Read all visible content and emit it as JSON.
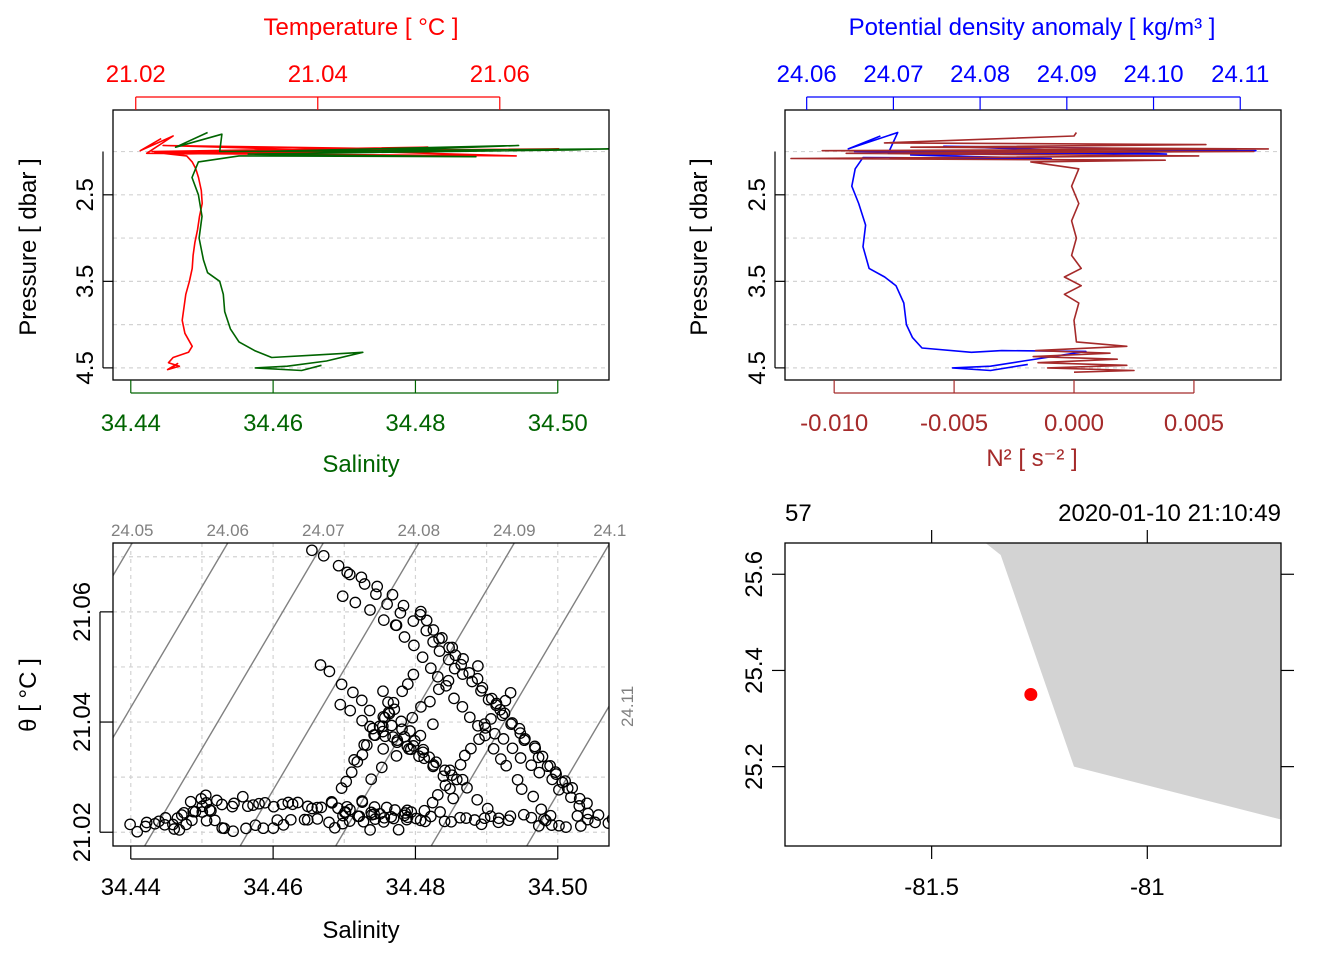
{
  "colors": {
    "temperature": "#ff0000",
    "salinity": "#006400",
    "density": "#0000ff",
    "n2": "#a52a2a",
    "grid": "#d3d3d3",
    "isopycnal": "#808080",
    "land": "#d3d3d3",
    "station": "#ff0000",
    "axis": "#000000"
  },
  "chart_data": [
    {
      "id": "ts_profile",
      "type": "line",
      "top_axis_label": "Temperature [ °C ]",
      "top_axis_ticks": [
        "21.02",
        "21.04",
        "21.06"
      ],
      "top_axis_range": [
        21.0175,
        21.072
      ],
      "bottom_axis_label": "Salinity",
      "bottom_axis_ticks": [
        "34.44",
        "34.46",
        "34.48",
        "34.50"
      ],
      "bottom_axis_range": [
        34.4375,
        34.5072
      ],
      "ylabel": "Pressure [ dbar ]",
      "y_ticks": [
        "2.5",
        "3.5",
        "4.5"
      ],
      "y_range": [
        1.52,
        4.64
      ],
      "y_reversed": true,
      "series": [
        {
          "name": "Temperature",
          "axis": "top",
          "points": [
            [
              21.0228,
              1.85
            ],
            [
              21.0205,
              1.99
            ],
            [
              21.0241,
              1.82
            ],
            [
              21.0212,
              2.02
            ],
            [
              21.0618,
              2.05
            ],
            [
              21.023,
              1.93
            ],
            [
              21.0555,
              1.98
            ],
            [
              21.0218,
              2.0
            ],
            [
              21.0521,
              1.95
            ],
            [
              21.0237,
              2.03
            ],
            [
              21.0665,
              1.97
            ],
            [
              21.0221,
              2.01
            ],
            [
              21.0256,
              2.05
            ],
            [
              21.0262,
              2.12
            ],
            [
              21.0266,
              2.2
            ],
            [
              21.0269,
              2.3
            ],
            [
              21.0272,
              2.45
            ],
            [
              21.0273,
              2.6
            ],
            [
              21.027,
              2.75
            ],
            [
              21.0268,
              2.9
            ],
            [
              21.0265,
              3.05
            ],
            [
              21.0263,
              3.2
            ],
            [
              21.0262,
              3.35
            ],
            [
              21.0259,
              3.5
            ],
            [
              21.0255,
              3.65
            ],
            [
              21.0253,
              3.8
            ],
            [
              21.0251,
              3.95
            ],
            [
              21.0254,
              4.1
            ],
            [
              21.0262,
              4.25
            ],
            [
              21.0258,
              4.32
            ],
            [
              21.0241,
              4.38
            ],
            [
              21.0236,
              4.44
            ],
            [
              21.0248,
              4.48
            ],
            [
              21.0235,
              4.52
            ],
            [
              21.0246,
              4.45
            ],
            [
              21.0239,
              4.5
            ]
          ]
        },
        {
          "name": "Salinity",
          "axis": "bottom",
          "points": [
            [
              34.4508,
              1.78
            ],
            [
              34.4463,
              1.95
            ],
            [
              34.4528,
              1.8
            ],
            [
              34.4525,
              2.0
            ],
            [
              34.5032,
              1.98
            ],
            [
              34.4648,
              2.02
            ],
            [
              34.4945,
              1.93
            ],
            [
              34.4578,
              2.0
            ],
            [
              34.5072,
              1.97
            ],
            [
              34.4565,
              2.03
            ],
            [
              34.4885,
              2.06
            ],
            [
              34.4552,
              2.05
            ],
            [
              34.4495,
              2.12
            ],
            [
              34.4486,
              2.3
            ],
            [
              34.4495,
              2.5
            ],
            [
              34.45,
              2.75
            ],
            [
              34.4496,
              3.0
            ],
            [
              34.4502,
              3.25
            ],
            [
              34.4508,
              3.4
            ],
            [
              34.4525,
              3.5
            ],
            [
              34.453,
              3.65
            ],
            [
              34.4532,
              3.85
            ],
            [
              34.454,
              4.05
            ],
            [
              34.4552,
              4.2
            ],
            [
              34.4574,
              4.3
            ],
            [
              34.4598,
              4.38
            ],
            [
              34.4662,
              4.35
            ],
            [
              34.4726,
              4.32
            ],
            [
              34.4675,
              4.42
            ],
            [
              34.462,
              4.48
            ],
            [
              34.4575,
              4.5
            ],
            [
              34.464,
              4.53
            ],
            [
              34.4668,
              4.47
            ]
          ]
        }
      ]
    },
    {
      "id": "density_profile",
      "type": "line",
      "top_axis_label": "Potential density anomaly [ kg/m³ ]",
      "top_axis_ticks": [
        "24.06",
        "24.07",
        "24.08",
        "24.09",
        "24.10",
        "24.11"
      ],
      "top_axis_range": [
        24.0575,
        24.1147
      ],
      "bottom_axis_label": "N² [ s⁻² ]",
      "bottom_axis_ticks": [
        "-0.010",
        "-0.005",
        "0.000",
        "0.005"
      ],
      "bottom_axis_range": [
        -0.01205,
        0.00863
      ],
      "ylabel": "Pressure [ dbar ]",
      "y_ticks": [
        "2.5",
        "3.5",
        "4.5"
      ],
      "y_range": [
        1.52,
        4.64
      ],
      "y_reversed": true,
      "series": [
        {
          "name": "Potential density anomaly",
          "axis": "top",
          "points": [
            [
              24.0685,
              1.82
            ],
            [
              24.0648,
              1.97
            ],
            [
              24.0705,
              1.78
            ],
            [
              24.0694,
              2.02
            ],
            [
              24.1095,
              1.98
            ],
            [
              24.0758,
              1.94
            ],
            [
              24.1015,
              2.03
            ],
            [
              24.0655,
              2.0
            ],
            [
              24.1118,
              1.99
            ],
            [
              24.072,
              2.04
            ],
            [
              24.0882,
              2.08
            ],
            [
              24.0665,
              2.07
            ],
            [
              24.0656,
              2.2
            ],
            [
              24.0652,
              2.4
            ],
            [
              24.066,
              2.6
            ],
            [
              24.0668,
              2.85
            ],
            [
              24.0665,
              3.1
            ],
            [
              24.0672,
              3.35
            ],
            [
              24.069,
              3.45
            ],
            [
              24.0703,
              3.55
            ],
            [
              24.0712,
              3.75
            ],
            [
              24.0715,
              4.0
            ],
            [
              24.0722,
              4.15
            ],
            [
              24.0733,
              4.27
            ],
            [
              24.079,
              4.32
            ],
            [
              24.0825,
              4.3
            ],
            [
              24.0922,
              4.31
            ],
            [
              24.085,
              4.42
            ],
            [
              24.0812,
              4.48
            ],
            [
              24.0768,
              4.5
            ],
            [
              24.0812,
              4.53
            ],
            [
              24.0855,
              4.46
            ]
          ]
        },
        {
          "name": "N2",
          "axis": "bottom",
          "points": [
            [
              0.0001,
              1.78
            ],
            [
              0.0,
              1.82
            ],
            [
              -0.0079,
              1.9
            ],
            [
              0.0055,
              1.92
            ],
            [
              -0.0068,
              1.95
            ],
            [
              0.0081,
              1.97
            ],
            [
              -0.0105,
              1.99
            ],
            [
              0.0075,
              2.0
            ],
            [
              -0.0095,
              2.02
            ],
            [
              0.0052,
              2.05
            ],
            [
              -0.0118,
              2.08
            ],
            [
              0.0038,
              2.1
            ],
            [
              -0.0018,
              2.12
            ],
            [
              0.0002,
              2.2
            ],
            [
              -0.0001,
              2.4
            ],
            [
              0.0002,
              2.6
            ],
            [
              -0.0001,
              2.8
            ],
            [
              0.0001,
              3.0
            ],
            [
              -0.0001,
              3.2
            ],
            [
              0.0003,
              3.35
            ],
            [
              -0.0004,
              3.45
            ],
            [
              0.0003,
              3.55
            ],
            [
              -0.0004,
              3.65
            ],
            [
              0.0002,
              3.75
            ],
            [
              0.0,
              3.95
            ],
            [
              0.0001,
              4.2
            ],
            [
              0.0022,
              4.25
            ],
            [
              -0.0016,
              4.3
            ],
            [
              0.0015,
              4.33
            ],
            [
              -0.0017,
              4.37
            ],
            [
              0.0018,
              4.4
            ],
            [
              -0.0015,
              4.44
            ],
            [
              0.0022,
              4.47
            ],
            [
              -0.0011,
              4.5
            ],
            [
              0.0025,
              4.53
            ],
            [
              0.0,
              4.55
            ]
          ]
        }
      ]
    },
    {
      "id": "ts_diagram",
      "type": "scatter",
      "xlabel": "Salinity",
      "ylabel": "θ [ °C ]",
      "x_ticks": [
        "34.44",
        "34.46",
        "34.48",
        "34.50"
      ],
      "x_range": [
        34.4375,
        34.5072
      ],
      "y_ticks": [
        "21.02",
        "21.04",
        "21.06"
      ],
      "y_range": [
        21.0175,
        21.0725
      ],
      "isopycnal_labels": [
        "24.05",
        "24.06",
        "24.07",
        "24.08",
        "24.09",
        "24.1",
        "24.11"
      ],
      "isopycnal_levels": [
        24.05,
        24.06,
        24.07,
        24.08,
        24.09,
        24.1,
        24.11
      ],
      "dense_segments": [
        {
          "from": [
            34.4405,
            21.0205
          ],
          "to": [
            34.4515,
            21.0245
          ],
          "n": 18
        },
        {
          "from": [
            34.4485,
            21.026
          ],
          "to": [
            34.4705,
            21.0245
          ],
          "n": 26
        },
        {
          "from": [
            34.4455,
            21.0212
          ],
          "to": [
            34.4795,
            21.0215
          ],
          "n": 30
        },
        {
          "from": [
            34.4695,
            21.0232
          ],
          "to": [
            34.5075,
            21.0218
          ],
          "n": 40
        },
        {
          "from": [
            34.4705,
            21.0248
          ],
          "to": [
            34.4795,
            21.0238
          ],
          "n": 12
        }
      ],
      "arms": [
        {
          "from": [
            34.4655,
            21.0715
          ],
          "to": [
            34.4885,
            21.0498
          ],
          "n": 14
        },
        {
          "from": [
            34.4705,
            21.0675
          ],
          "to": [
            34.4805,
            21.0598
          ],
          "n": 6
        },
        {
          "from": [
            34.4805,
            21.0598
          ],
          "to": [
            34.5015,
            21.0278
          ],
          "n": 22
        },
        {
          "from": [
            34.4695,
            21.0628
          ],
          "to": [
            34.4775,
            21.0575
          ],
          "n": 5
        },
        {
          "from": [
            34.4775,
            21.0575
          ],
          "to": [
            34.4985,
            21.0225
          ],
          "n": 20
        },
        {
          "from": [
            34.4825,
            21.0545
          ],
          "to": [
            34.5055,
            21.0235
          ],
          "n": 22
        },
        {
          "from": [
            34.4665,
            21.0505
          ],
          "to": [
            34.4915,
            21.0228
          ],
          "n": 18
        },
        {
          "from": [
            34.4795,
            21.0485
          ],
          "to": [
            34.4695,
            21.0278
          ],
          "n": 14
        },
        {
          "from": [
            34.4935,
            21.0455
          ],
          "to": [
            34.4815,
            21.0238
          ],
          "n": 14
        },
        {
          "from": [
            34.4695,
            21.0432
          ],
          "to": [
            34.4805,
            21.0335
          ],
          "n": 8
        },
        {
          "from": [
            34.4735,
            21.0395
          ],
          "to": [
            34.4865,
            21.0295
          ],
          "n": 8
        },
        {
          "from": [
            34.4765,
            21.0415
          ],
          "to": [
            34.4715,
            21.0335
          ],
          "n": 5
        },
        {
          "from": [
            34.4845,
            21.0475
          ],
          "to": [
            34.4755,
            21.0355
          ],
          "n": 8
        },
        {
          "from": [
            34.4895,
            21.0395
          ],
          "to": [
            34.5045,
            21.0235
          ],
          "n": 12
        },
        {
          "from": [
            34.4825,
            21.0395
          ],
          "to": [
            34.4735,
            21.0295
          ],
          "n": 6
        },
        {
          "from": [
            34.4755,
            21.0455
          ],
          "to": [
            34.4855,
            21.0265
          ],
          "n": 12
        }
      ]
    },
    {
      "id": "station_map",
      "type": "map",
      "top_left_label": "57",
      "top_right_label": "2020-01-10 21:10:49",
      "x_ticks": [
        "-81.5",
        "-81"
      ],
      "x_range": [
        -81.84,
        -80.69
      ],
      "y_ticks": [
        "25.2",
        "25.4",
        "25.6"
      ],
      "y_range": [
        25.035,
        25.665
      ],
      "land_polygon": [
        [
          -81.375,
          25.665
        ],
        [
          -81.34,
          25.64
        ],
        [
          -81.17,
          25.2
        ],
        [
          -80.69,
          25.09
        ],
        [
          -80.69,
          25.665
        ]
      ],
      "station": {
        "lon": -81.27,
        "lat": 25.35
      }
    }
  ]
}
